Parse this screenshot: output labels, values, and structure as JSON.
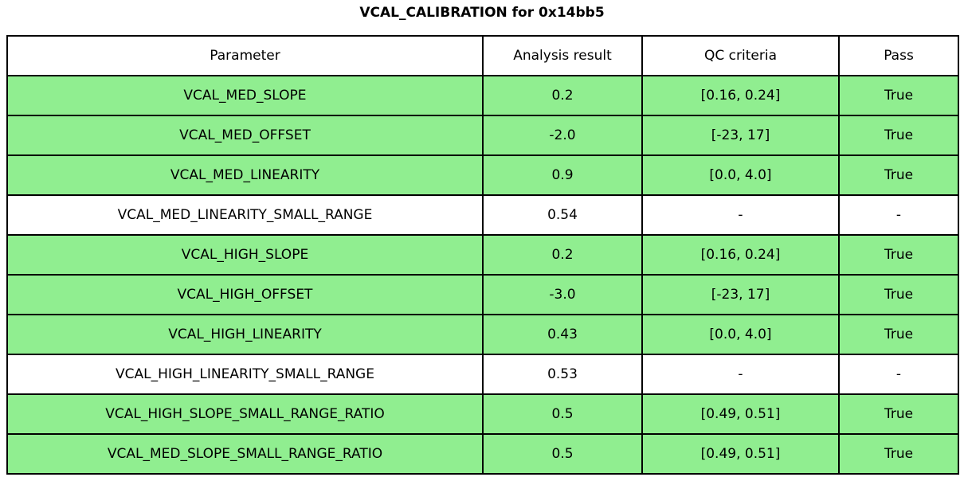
{
  "title": "VCAL_CALIBRATION for 0x14bb5",
  "colors": {
    "pass_row_bg": "#90ee90",
    "neutral_row_bg": "#ffffff",
    "border": "#000000",
    "text": "#000000"
  },
  "table": {
    "headers": {
      "parameter": "Parameter",
      "result": "Analysis result",
      "criteria": "QC criteria",
      "pass": "Pass"
    },
    "rows": [
      {
        "parameter": "VCAL_MED_SLOPE",
        "result": "0.2",
        "criteria": "[0.16, 0.24]",
        "pass": "True",
        "highlight": true
      },
      {
        "parameter": "VCAL_MED_OFFSET",
        "result": "-2.0",
        "criteria": "[-23, 17]",
        "pass": "True",
        "highlight": true
      },
      {
        "parameter": "VCAL_MED_LINEARITY",
        "result": "0.9",
        "criteria": "[0.0, 4.0]",
        "pass": "True",
        "highlight": true
      },
      {
        "parameter": "VCAL_MED_LINEARITY_SMALL_RANGE",
        "result": "0.54",
        "criteria": "-",
        "pass": "-",
        "highlight": false
      },
      {
        "parameter": "VCAL_HIGH_SLOPE",
        "result": "0.2",
        "criteria": "[0.16, 0.24]",
        "pass": "True",
        "highlight": true
      },
      {
        "parameter": "VCAL_HIGH_OFFSET",
        "result": "-3.0",
        "criteria": "[-23, 17]",
        "pass": "True",
        "highlight": true
      },
      {
        "parameter": "VCAL_HIGH_LINEARITY",
        "result": "0.43",
        "criteria": "[0.0, 4.0]",
        "pass": "True",
        "highlight": true
      },
      {
        "parameter": "VCAL_HIGH_LINEARITY_SMALL_RANGE",
        "result": "0.53",
        "criteria": "-",
        "pass": "-",
        "highlight": false
      },
      {
        "parameter": "VCAL_HIGH_SLOPE_SMALL_RANGE_RATIO",
        "result": "0.5",
        "criteria": "[0.49, 0.51]",
        "pass": "True",
        "highlight": true
      },
      {
        "parameter": "VCAL_MED_SLOPE_SMALL_RANGE_RATIO",
        "result": "0.5",
        "criteria": "[0.49, 0.51]",
        "pass": "True",
        "highlight": true
      }
    ]
  },
  "chart_data": {
    "type": "table",
    "title": "VCAL_CALIBRATION for 0x14bb5",
    "columns": [
      "Parameter",
      "Analysis result",
      "QC criteria",
      "Pass"
    ],
    "rows": [
      [
        "VCAL_MED_SLOPE",
        "0.2",
        "[0.16, 0.24]",
        "True"
      ],
      [
        "VCAL_MED_OFFSET",
        "-2.0",
        "[-23, 17]",
        "True"
      ],
      [
        "VCAL_MED_LINEARITY",
        "0.9",
        "[0.0, 4.0]",
        "True"
      ],
      [
        "VCAL_MED_LINEARITY_SMALL_RANGE",
        "0.54",
        "-",
        "-"
      ],
      [
        "VCAL_HIGH_SLOPE",
        "0.2",
        "[0.16, 0.24]",
        "True"
      ],
      [
        "VCAL_HIGH_OFFSET",
        "-3.0",
        "[-23, 17]",
        "True"
      ],
      [
        "VCAL_HIGH_LINEARITY",
        "0.43",
        "[0.0, 4.0]",
        "True"
      ],
      [
        "VCAL_HIGH_LINEARITY_SMALL_RANGE",
        "0.53",
        "-",
        "-"
      ],
      [
        "VCAL_HIGH_SLOPE_SMALL_RANGE_RATIO",
        "0.5",
        "[0.49, 0.51]",
        "True"
      ],
      [
        "VCAL_MED_SLOPE_SMALL_RANGE_RATIO",
        "0.5",
        "[0.49, 0.51]",
        "True"
      ]
    ],
    "row_highlighted": [
      true,
      true,
      true,
      false,
      true,
      true,
      true,
      false,
      true,
      true
    ],
    "layout": {
      "grid": true,
      "highlight_color": "#90ee90"
    }
  }
}
